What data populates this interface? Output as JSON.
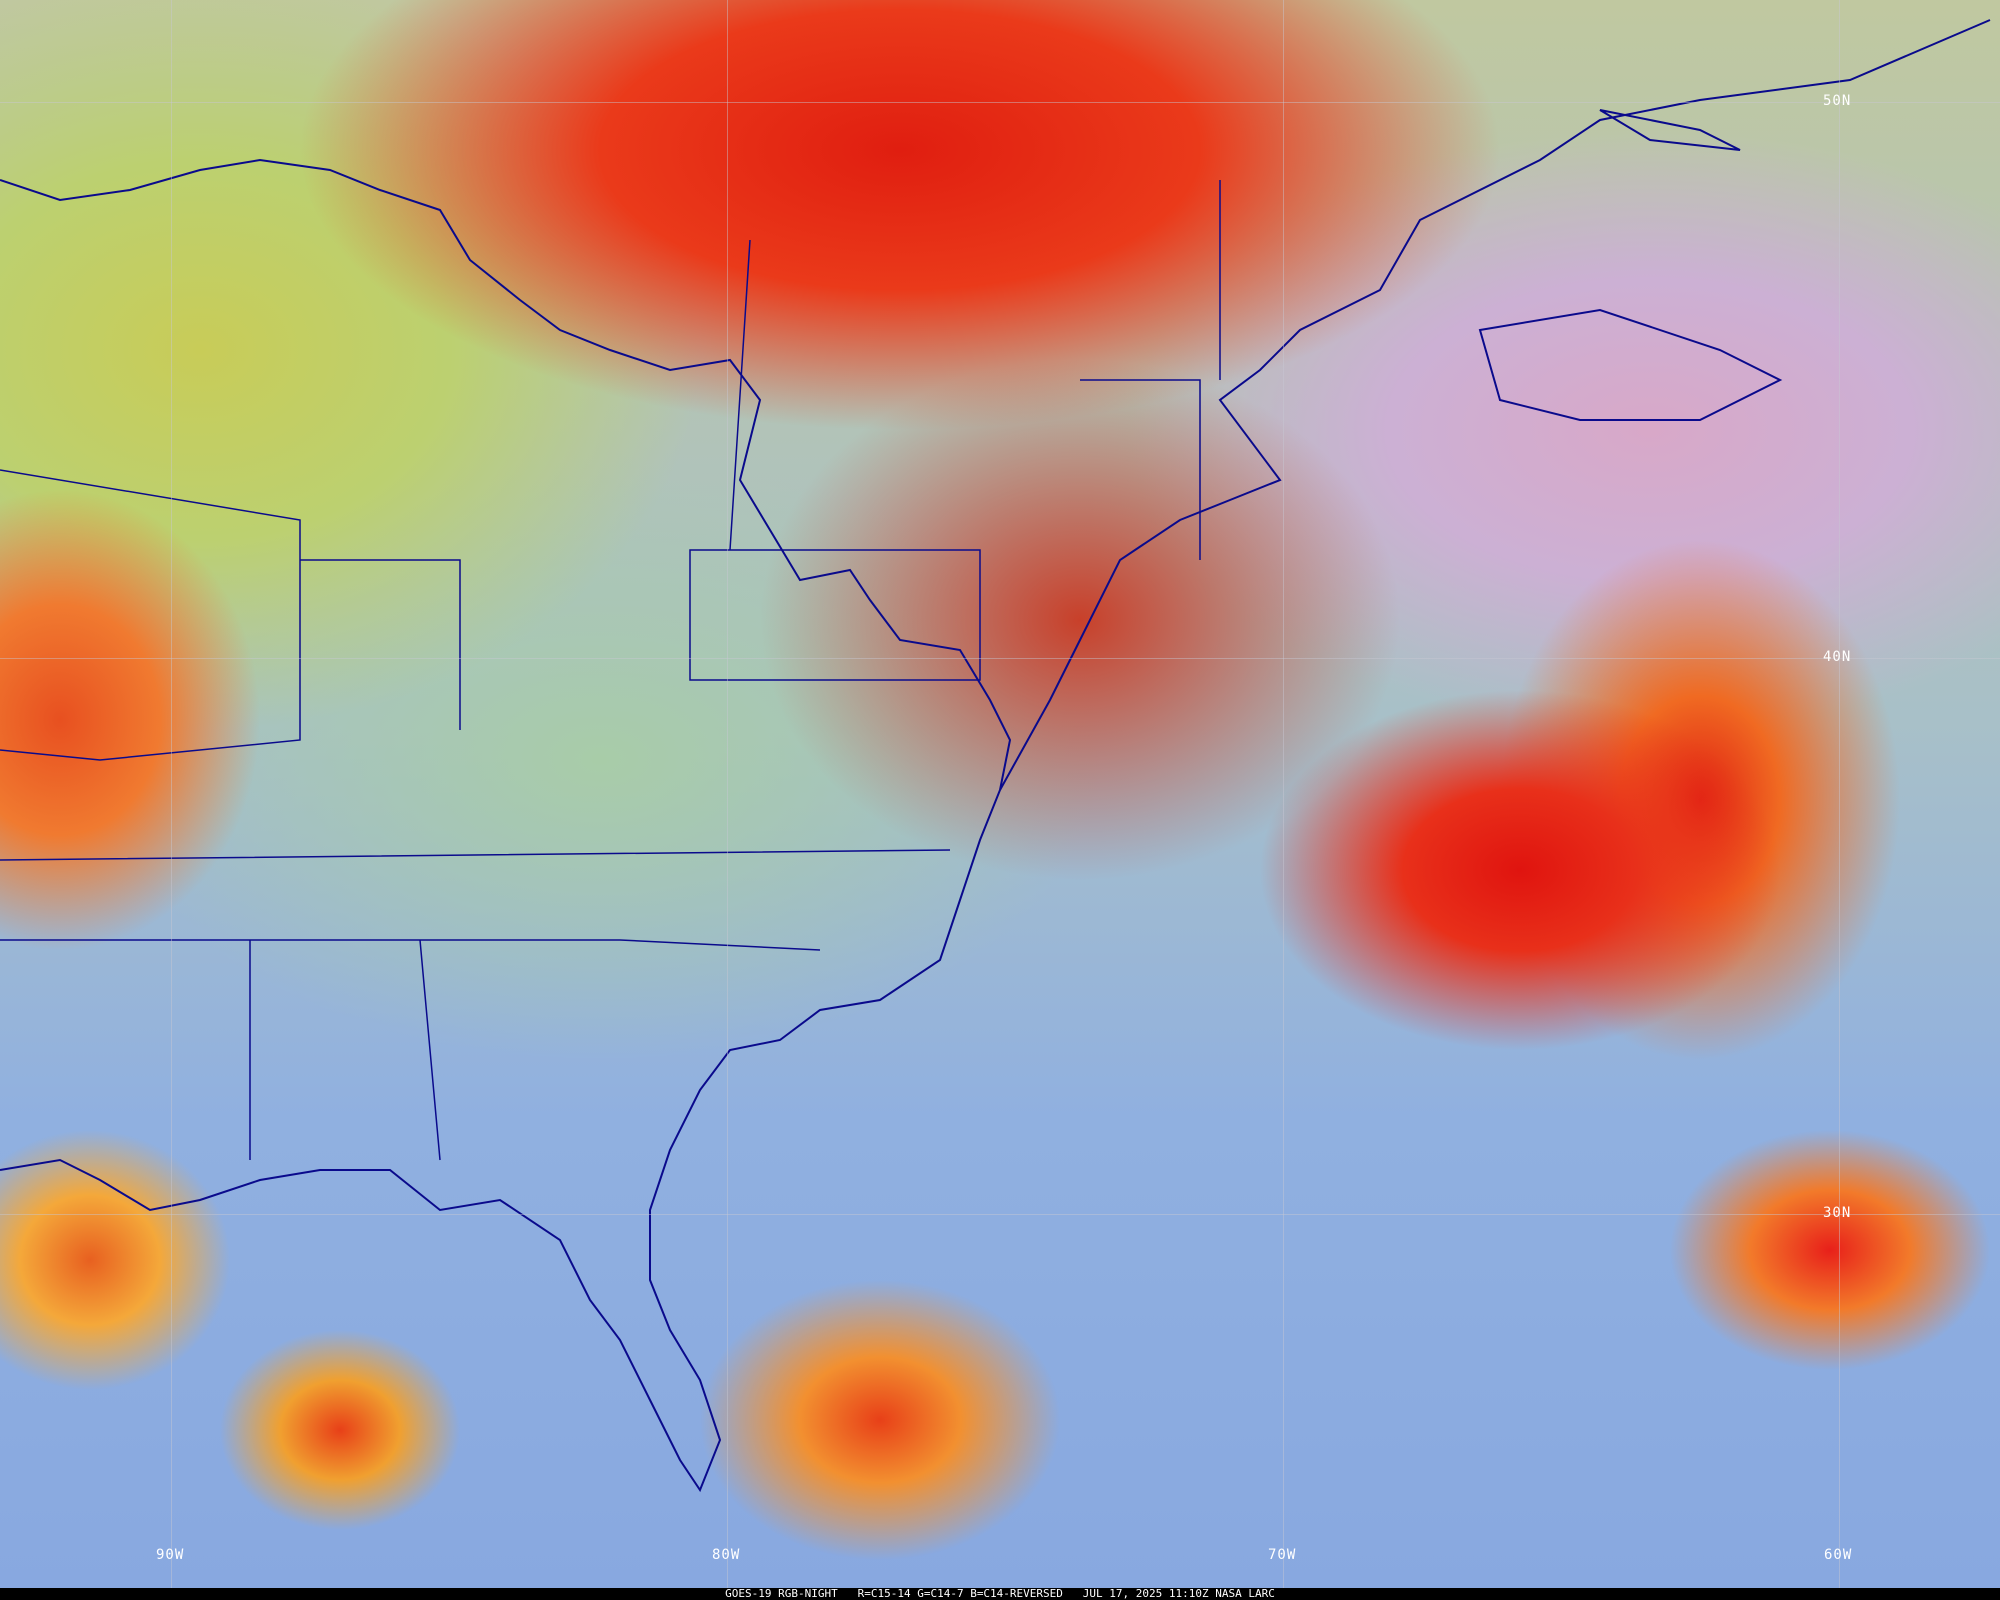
{
  "image": {
    "satellite": "GOES-19",
    "product": "RGB-NIGHT",
    "recipe": "R=C15-14 G=C14-7 B=C14-REVERSED",
    "datetime": "JUL 17, 2025 11:10Z",
    "source": "NASA LARC",
    "caption": "GOES-19 RGB-NIGHT   R=C15-14 G=C14-7 B=C14-REVERSED   JUL 17, 2025 11:10Z NASA LARC"
  },
  "grid": {
    "latitudes": [
      "50N",
      "40N",
      "30N"
    ],
    "longitudes": [
      "90W",
      "80W",
      "70W",
      "60W"
    ],
    "boundary_color": "#0a0a8c"
  }
}
